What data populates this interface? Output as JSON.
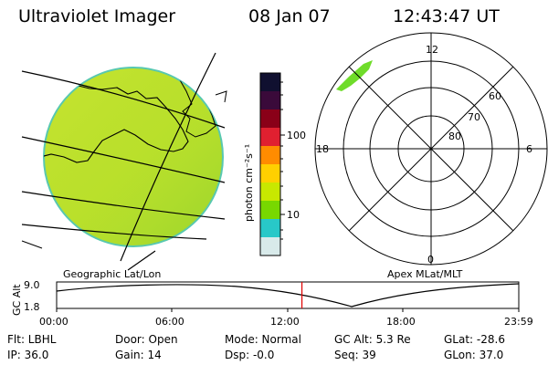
{
  "header": {
    "title": "Ultraviolet Imager",
    "date": "08 Jan 07",
    "time": "12:43:47 UT"
  },
  "colorbar": {
    "label": "photon cm⁻²s⁻¹",
    "tick_labels": [
      "100",
      "10"
    ],
    "colors": [
      "#101030",
      "#3a0a3a",
      "#8a0018",
      "#e02030",
      "#ff8c00",
      "#ffd000",
      "#c8e800",
      "#78d800",
      "#28c8c8",
      "#d8eaea"
    ]
  },
  "map_left": {
    "label": "Geographic Lat/Lon",
    "fill": "#b8e02a"
  },
  "map_right": {
    "label": "Apex MLat/MLT",
    "mlt_labels": [
      "12",
      "6",
      "0",
      "18"
    ],
    "lat_labels": [
      "60",
      "70",
      "80"
    ],
    "patch_color": "#6fdc2a"
  },
  "altitude_plot": {
    "ylabel": "GC Alt",
    "ytick_labels": [
      "9.0",
      "1.8"
    ],
    "xtick_labels": [
      "00:00",
      "06:00",
      "12:00",
      "18:00",
      "23:59"
    ],
    "marker_color": "#e00000",
    "marker_hours": 12.73
  },
  "status": {
    "flt": "Flt: LBHL",
    "door": "Door: Open",
    "mode": "Mode: Normal",
    "gc_alt": "GC Alt: 5.3 Re",
    "glat": "GLat: -28.6",
    "ip": "IP: 36.0",
    "gain": "Gain: 14",
    "dsp": "Dsp:   -0.0",
    "seq": "Seq: 39",
    "glon": "GLon:  37.0"
  }
}
